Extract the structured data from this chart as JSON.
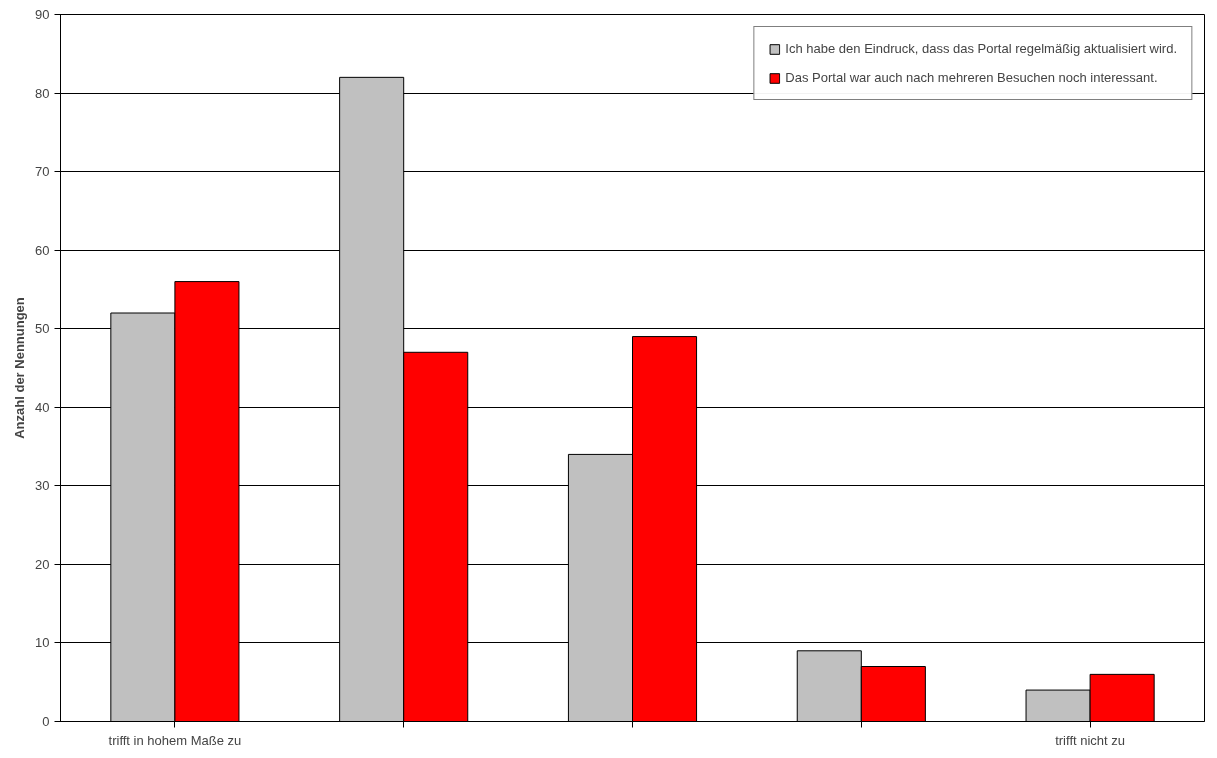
{
  "chart_data": {
    "type": "bar",
    "ylabel": "Anzahl der Nennungen",
    "categories": [
      "trifft in hohem Maße zu",
      null,
      null,
      null,
      "trifft nicht zu"
    ],
    "series": [
      {
        "name": "Ich habe den Eindruck, dass das Portal regelmäßig aktualisiert wird.",
        "color": "#c0c0c0",
        "values": [
          52,
          82,
          34,
          9,
          4
        ]
      },
      {
        "name": "Das Portal war auch nach mehreren Besuchen noch interessant.",
        "color": "#ff0000",
        "values": [
          56,
          47,
          49,
          7,
          6
        ]
      }
    ],
    "ylim": [
      0,
      90
    ],
    "yticks": [
      0,
      10,
      20,
      30,
      40,
      50,
      60,
      70,
      80,
      90
    ],
    "grid": "y",
    "legend": "top right"
  }
}
